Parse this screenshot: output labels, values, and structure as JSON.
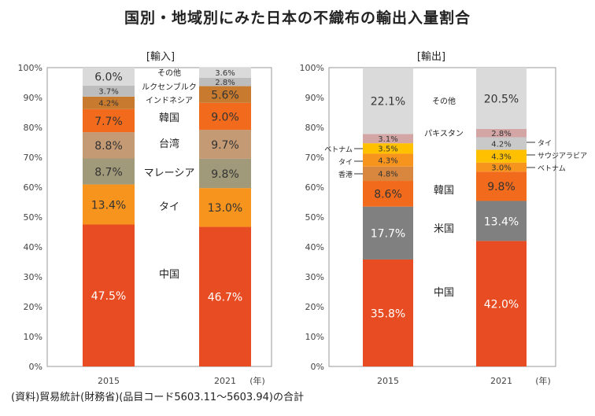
{
  "title": "国別・地域別にみた日本の不織布の輸出入量割合",
  "source_note": "(資料)貿易統計(財務省)(品目コード5603.11～5603.94)の合計",
  "chart_data": [
    {
      "type": "bar",
      "stacked": true,
      "panel_title": "[輸入]",
      "categories": [
        "2015",
        "2021"
      ],
      "x_unit": "(年)",
      "ylim": [
        0,
        100
      ],
      "y_ticks": [
        "0%",
        "10%",
        "20%",
        "30%",
        "40%",
        "50%",
        "60%",
        "70%",
        "80%",
        "90%",
        "100%"
      ],
      "series": [
        {
          "name": "中国",
          "values": [
            47.5,
            46.7
          ],
          "labels": [
            "47.5%",
            "46.7%"
          ],
          "color": "#E84C22"
        },
        {
          "name": "タイ",
          "values": [
            13.4,
            13.0
          ],
          "labels": [
            "13.4%",
            "13.0%"
          ],
          "color": "#F7941D"
        },
        {
          "name": "マレーシア",
          "values": [
            8.7,
            9.8
          ],
          "labels": [
            "8.7%",
            "9.8%"
          ],
          "color": "#A09A7A"
        },
        {
          "name": "台湾",
          "values": [
            8.8,
            9.7
          ],
          "labels": [
            "8.8%",
            "9.7%"
          ],
          "color": "#C49A74"
        },
        {
          "name": "韓国",
          "values": [
            7.7,
            9.0
          ],
          "labels": [
            "7.7%",
            "9.0%"
          ],
          "color": "#F26B1D"
        },
        {
          "name": "インドネシア",
          "values": [
            4.2,
            5.6
          ],
          "labels": [
            "4.2%",
            "5.6%"
          ],
          "color": "#C87A2E"
        },
        {
          "name": "ルクセンブルク",
          "values": [
            3.7,
            2.8
          ],
          "labels": [
            "3.7%",
            "2.8%"
          ],
          "color": "#BDBDBD"
        },
        {
          "name": "その他",
          "values": [
            6.0,
            3.6
          ],
          "labels": [
            "6.0%",
            "3.6%"
          ],
          "color": "#DADADA"
        }
      ]
    },
    {
      "type": "bar",
      "stacked": true,
      "panel_title": "[輸出]",
      "categories": [
        "2015",
        "2021"
      ],
      "x_unit": "(年)",
      "ylim": [
        0,
        100
      ],
      "y_ticks": [
        "0%",
        "10%",
        "20%",
        "30%",
        "40%",
        "50%",
        "60%",
        "70%",
        "80%",
        "90%",
        "100%"
      ],
      "series": [
        {
          "name": "中国",
          "values": [
            35.8,
            42.0
          ],
          "labels": [
            "35.8%",
            "42.0%"
          ],
          "color": "#E84C22"
        },
        {
          "name": "米国",
          "values": [
            17.7,
            13.4
          ],
          "labels": [
            "17.7%",
            "13.4%"
          ],
          "color": "#808080"
        },
        {
          "name": "韓国",
          "values": [
            8.6,
            9.8
          ],
          "labels": [
            "8.6%",
            "9.8%"
          ],
          "color": "#F26B1D"
        },
        {
          "name": "香港",
          "values": [
            4.8,
            null
          ],
          "labels": [
            "4.8%",
            ""
          ],
          "color": "#D9873E"
        },
        {
          "name": "タイ",
          "values": [
            4.3,
            3.0
          ],
          "labels": [
            "4.3%",
            "3.0%"
          ],
          "color": "#F7941D"
        },
        {
          "name": "ベトナム",
          "values": [
            3.5,
            4.3
          ],
          "labels": [
            "3.5%",
            "4.3%"
          ],
          "color": "#FFC000"
        },
        {
          "name": "サウジアラビア",
          "values": [
            null,
            4.2
          ],
          "labels": [
            "",
            "4.2%"
          ],
          "color": "#C9C9C9"
        },
        {
          "name": "パキスタン",
          "values": [
            3.1,
            2.8
          ],
          "labels": [
            "3.1%",
            "2.8%"
          ],
          "color": "#D4A5A5"
        },
        {
          "name": "その他",
          "values": [
            22.1,
            20.5
          ],
          "labels": [
            "22.1%",
            "20.5%"
          ],
          "color": "#DADADA"
        }
      ]
    }
  ]
}
